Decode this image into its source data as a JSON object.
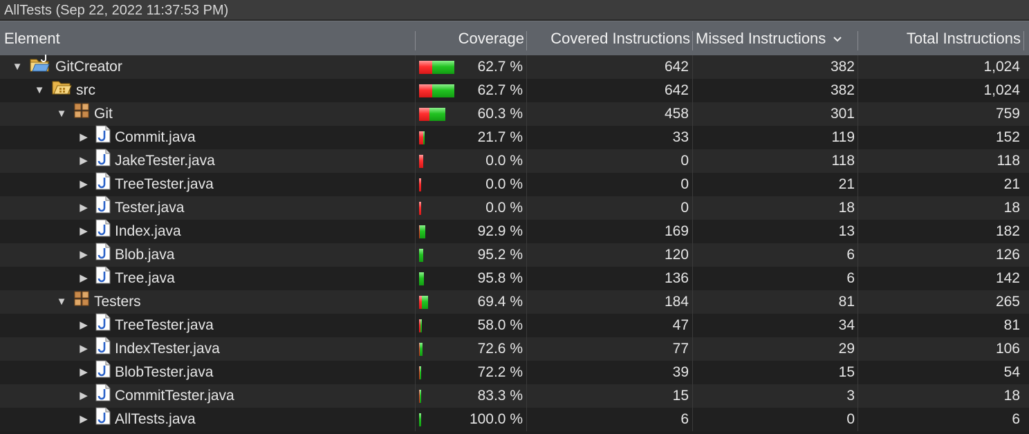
{
  "title": "AllTests (Sep 22, 2022 11:37:53 PM)",
  "columns": {
    "element": "Element",
    "coverage": "Coverage",
    "covered": "Covered Instructions",
    "missed": "Missed Instructions",
    "total": "Total Instructions"
  },
  "sort_icon": "chevron-down-icon",
  "colors": {
    "covered": "#22c322",
    "missed": "#ff2f2f"
  },
  "rows": [
    {
      "name": "GitCreator",
      "level": 0,
      "expanded": true,
      "kind": "project",
      "coverage_text": "62.7 %",
      "covered": "642",
      "missed": "382",
      "total": "1,024",
      "covered_n": 642,
      "missed_n": 382
    },
    {
      "name": "src",
      "level": 1,
      "expanded": true,
      "kind": "folder",
      "coverage_text": "62.7 %",
      "covered": "642",
      "missed": "382",
      "total": "1,024",
      "covered_n": 642,
      "missed_n": 382
    },
    {
      "name": "Git",
      "level": 2,
      "expanded": true,
      "kind": "package",
      "coverage_text": "60.3 %",
      "covered": "458",
      "missed": "301",
      "total": "759",
      "covered_n": 458,
      "missed_n": 301
    },
    {
      "name": "Commit.java",
      "level": 3,
      "expanded": false,
      "kind": "java",
      "coverage_text": "21.7 %",
      "covered": "33",
      "missed": "119",
      "total": "152",
      "covered_n": 33,
      "missed_n": 119
    },
    {
      "name": "JakeTester.java",
      "level": 3,
      "expanded": false,
      "kind": "java",
      "coverage_text": "0.0 %",
      "covered": "0",
      "missed": "118",
      "total": "118",
      "covered_n": 0,
      "missed_n": 118
    },
    {
      "name": "TreeTester.java",
      "level": 3,
      "expanded": false,
      "kind": "java",
      "coverage_text": "0.0 %",
      "covered": "0",
      "missed": "21",
      "total": "21",
      "covered_n": 0,
      "missed_n": 21
    },
    {
      "name": "Tester.java",
      "level": 3,
      "expanded": false,
      "kind": "java",
      "coverage_text": "0.0 %",
      "covered": "0",
      "missed": "18",
      "total": "18",
      "covered_n": 0,
      "missed_n": 18
    },
    {
      "name": "Index.java",
      "level": 3,
      "expanded": false,
      "kind": "java",
      "coverage_text": "92.9 %",
      "covered": "169",
      "missed": "13",
      "total": "182",
      "covered_n": 169,
      "missed_n": 13
    },
    {
      "name": "Blob.java",
      "level": 3,
      "expanded": false,
      "kind": "java",
      "coverage_text": "95.2 %",
      "covered": "120",
      "missed": "6",
      "total": "126",
      "covered_n": 120,
      "missed_n": 6
    },
    {
      "name": "Tree.java",
      "level": 3,
      "expanded": false,
      "kind": "java",
      "coverage_text": "95.8 %",
      "covered": "136",
      "missed": "6",
      "total": "142",
      "covered_n": 136,
      "missed_n": 6
    },
    {
      "name": "Testers",
      "level": 2,
      "expanded": true,
      "kind": "package",
      "coverage_text": "69.4 %",
      "covered": "184",
      "missed": "81",
      "total": "265",
      "covered_n": 184,
      "missed_n": 81
    },
    {
      "name": "TreeTester.java",
      "level": 3,
      "expanded": false,
      "kind": "java",
      "coverage_text": "58.0 %",
      "covered": "47",
      "missed": "34",
      "total": "81",
      "covered_n": 47,
      "missed_n": 34
    },
    {
      "name": "IndexTester.java",
      "level": 3,
      "expanded": false,
      "kind": "java",
      "coverage_text": "72.6 %",
      "covered": "77",
      "missed": "29",
      "total": "106",
      "covered_n": 77,
      "missed_n": 29
    },
    {
      "name": "BlobTester.java",
      "level": 3,
      "expanded": false,
      "kind": "java",
      "coverage_text": "72.2 %",
      "covered": "39",
      "missed": "15",
      "total": "54",
      "covered_n": 39,
      "missed_n": 15
    },
    {
      "name": "CommitTester.java",
      "level": 3,
      "expanded": false,
      "kind": "java",
      "coverage_text": "83.3 %",
      "covered": "15",
      "missed": "3",
      "total": "18",
      "covered_n": 15,
      "missed_n": 3
    },
    {
      "name": "AllTests.java",
      "level": 3,
      "expanded": false,
      "kind": "java",
      "coverage_text": "100.0 %",
      "covered": "6",
      "missed": "0",
      "total": "6",
      "covered_n": 6,
      "missed_n": 0
    }
  ]
}
